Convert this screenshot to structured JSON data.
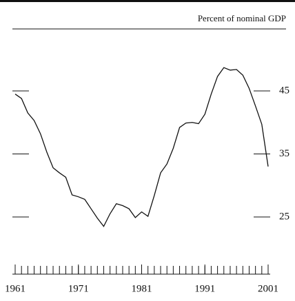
{
  "chart_data": {
    "type": "line",
    "subtitle": "Percent of nominal GDP",
    "x": [
      1961,
      1962,
      1963,
      1964,
      1965,
      1966,
      1967,
      1968,
      1969,
      1970,
      1971,
      1972,
      1973,
      1974,
      1975,
      1976,
      1977,
      1978,
      1979,
      1980,
      1981,
      1982,
      1983,
      1984,
      1985,
      1986,
      1987,
      1988,
      1989,
      1990,
      1991,
      1992,
      1993,
      1994,
      1995,
      1996,
      1997,
      1998,
      1999,
      2000,
      2001
    ],
    "series": [
      {
        "color": "#111111",
        "values": [
          44.5,
          43.8,
          41.5,
          40.3,
          38.2,
          35.3,
          32.8,
          32.0,
          31.3,
          28.5,
          28.2,
          27.8,
          26.3,
          24.8,
          23.5,
          25.5,
          27.1,
          26.8,
          26.3,
          24.9,
          25.8,
          25.1,
          28.4,
          32.0,
          33.4,
          35.9,
          39.2,
          39.9,
          40.0,
          39.8,
          41.3,
          44.5,
          47.3,
          48.7,
          48.3,
          48.4,
          47.5,
          45.4,
          42.6,
          39.7,
          33.0
        ]
      }
    ],
    "xlim": [
      1961,
      2001
    ],
    "xticks": [
      1961,
      1971,
      1981,
      1991,
      2001
    ],
    "ylim": [
      18,
      55
    ],
    "yticks": [
      25,
      35,
      45
    ]
  }
}
